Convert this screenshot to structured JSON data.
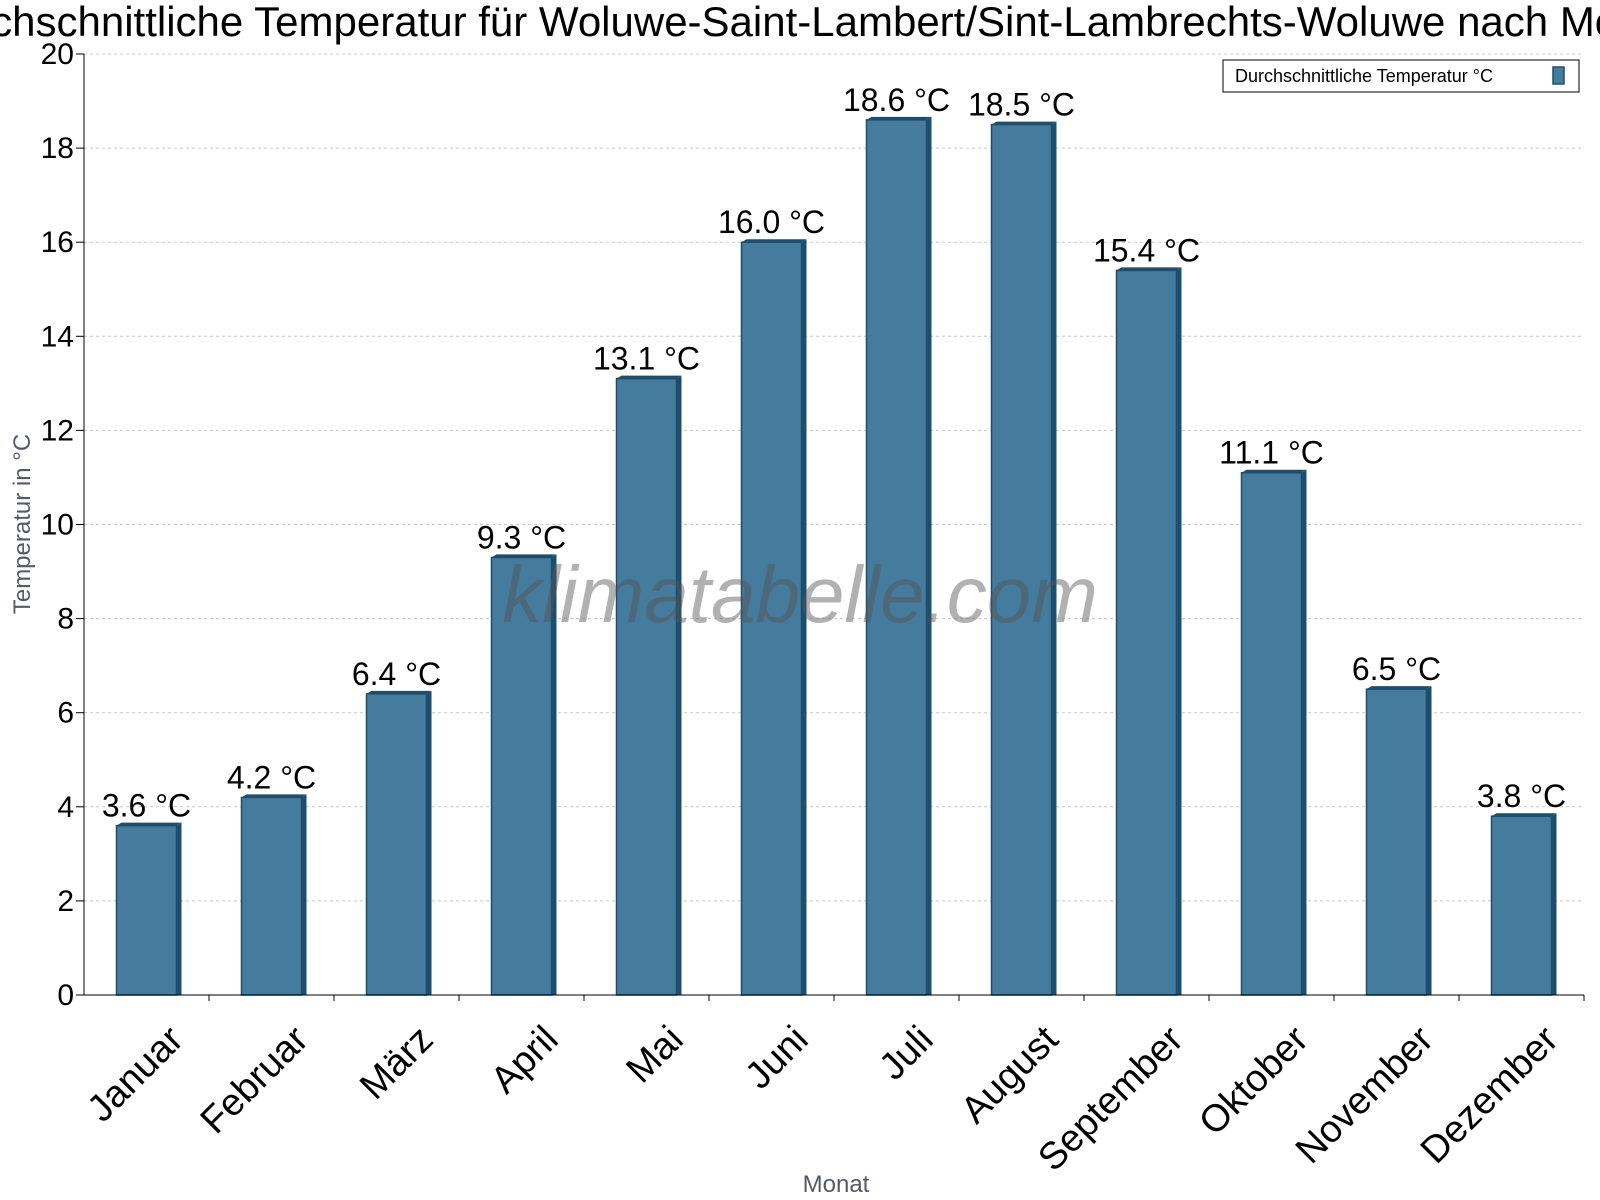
{
  "watermark": "klimatabelle.com",
  "chart_data": {
    "type": "bar",
    "title": "Durchschnittliche Temperatur für Woluwe-Saint-Lambert/Sint-Lambrechts-Woluwe nach Monat",
    "xlabel": "Monat",
    "ylabel": "Temperatur in °C",
    "ylim": [
      0,
      20
    ],
    "yticks": [
      0,
      2,
      4,
      6,
      8,
      10,
      12,
      14,
      16,
      18,
      20
    ],
    "grid": true,
    "legend_position": "top-right",
    "categories": [
      "Januar",
      "Februar",
      "März",
      "April",
      "Mai",
      "Juni",
      "Juli",
      "August",
      "September",
      "Oktober",
      "November",
      "Dezember"
    ],
    "series": [
      {
        "name": "Durchschnittliche Temperatur °C",
        "values": [
          3.6,
          4.2,
          6.4,
          9.3,
          13.1,
          16.0,
          18.6,
          18.5,
          15.4,
          11.1,
          6.5,
          3.8
        ],
        "labels": [
          "3.6 °C",
          "4.2 °C",
          "6.4 °C",
          "9.3 °C",
          "13.1 °C",
          "16.0 °C",
          "18.6 °C",
          "18.5 °C",
          "15.4 °C",
          "11.1 °C",
          "6.5 °C",
          "3.8 °C"
        ],
        "color": "#457b9d",
        "edge_color": "#1d4e6e"
      }
    ]
  }
}
